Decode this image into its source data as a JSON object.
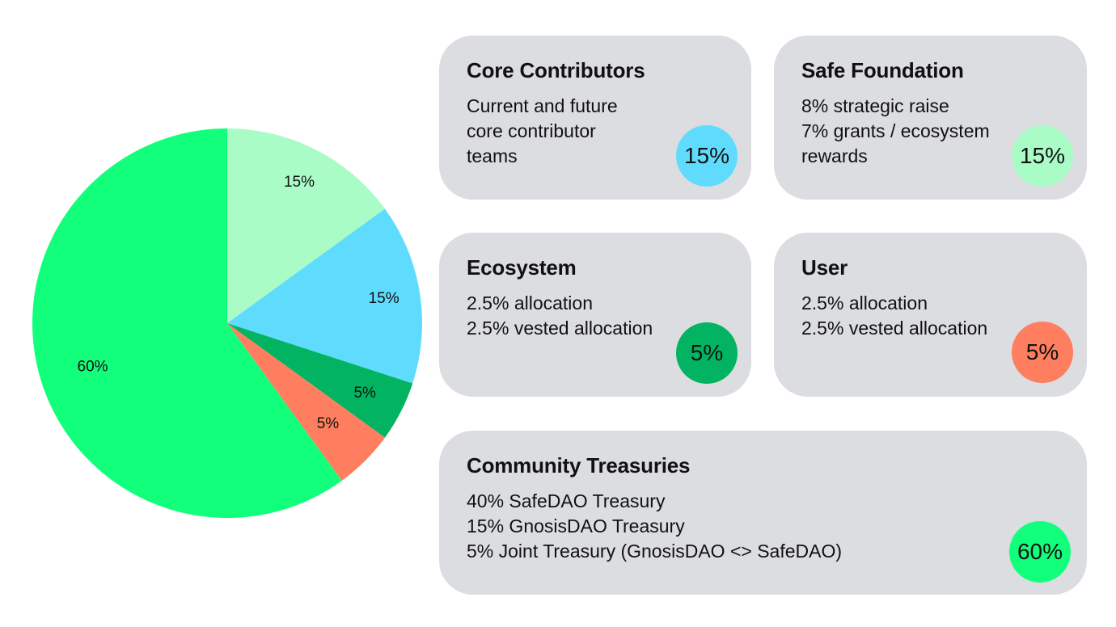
{
  "chart_data": {
    "type": "pie",
    "slices": [
      {
        "label": "15%",
        "value": 15,
        "color": "#a9fcc6",
        "group": "Safe Foundation"
      },
      {
        "label": "15%",
        "value": 15,
        "color": "#5fdcfd",
        "group": "Core Contributors"
      },
      {
        "label": "5%",
        "value": 5,
        "color": "#02b461",
        "group": "Ecosystem"
      },
      {
        "label": "5%",
        "value": 5,
        "color": "#fe7e5f",
        "group": "User"
      },
      {
        "label": "60%",
        "value": 60,
        "color": "#12ff7c",
        "group": "Community Treasuries"
      }
    ]
  },
  "cards": {
    "core": {
      "title": "Core Contributors",
      "lines": [
        "Current and future",
        "core contributor",
        "teams"
      ],
      "badge": "15%",
      "badge_color": "#5fdcfd"
    },
    "safe": {
      "title": "Safe Foundation",
      "lines": [
        "8% strategic raise",
        "7% grants / ecosystem",
        "rewards"
      ],
      "badge": "15%",
      "badge_color": "#a9fcc6"
    },
    "eco": {
      "title": "Ecosystem",
      "lines": [
        "2.5% allocation",
        "2.5% vested allocation"
      ],
      "badge": "5%",
      "badge_color": "#02b461"
    },
    "user": {
      "title": "User",
      "lines": [
        "2.5% allocation",
        "2.5% vested allocation"
      ],
      "badge": "5%",
      "badge_color": "#fe7e5f"
    },
    "community": {
      "title": "Community Treasuries",
      "lines": [
        "40% SafeDAO Treasury",
        "15% GnosisDAO Treasury",
        "5% Joint Treasury (GnosisDAO <> SafeDAO)"
      ],
      "badge": "60%",
      "badge_color": "#12ff7c"
    }
  }
}
